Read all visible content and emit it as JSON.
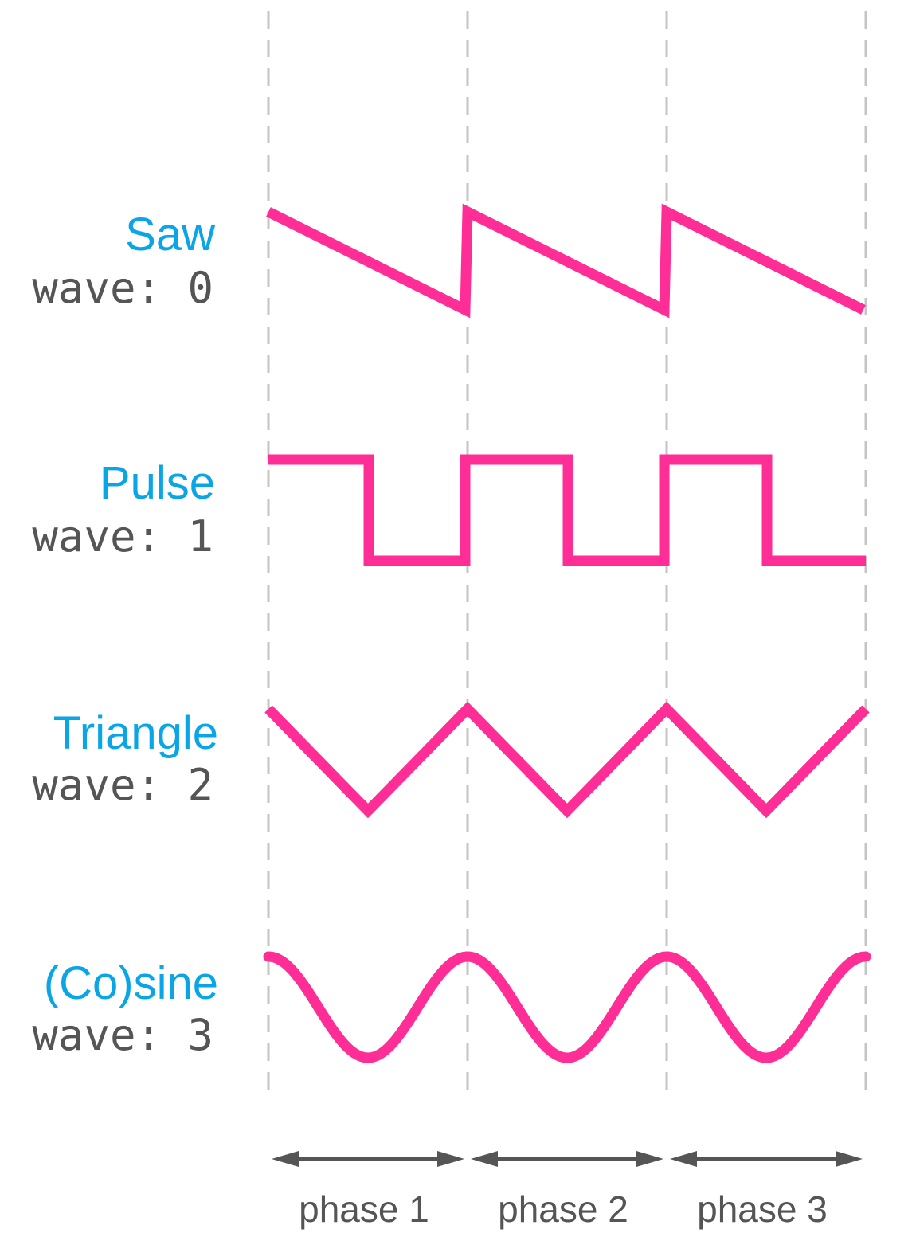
{
  "colors": {
    "wave_stroke": "#ff2d96",
    "label_name": "#0aa5e6",
    "label_code": "#555555",
    "guide_line": "#c4c4c4",
    "phase_arrow": "#555555"
  },
  "waves": [
    {
      "name": "Saw",
      "code": "wave: 0",
      "shape": "saw"
    },
    {
      "name": "Pulse",
      "code": "wave: 1",
      "shape": "pulse"
    },
    {
      "name": "Triangle",
      "code": "wave: 2",
      "shape": "triangle"
    },
    {
      "name": "(Co)sine",
      "code": "wave: 3",
      "shape": "cosine"
    }
  ],
  "phases": [
    {
      "label": "phase 1"
    },
    {
      "label": "phase 2"
    },
    {
      "label": "phase 3"
    }
  ]
}
